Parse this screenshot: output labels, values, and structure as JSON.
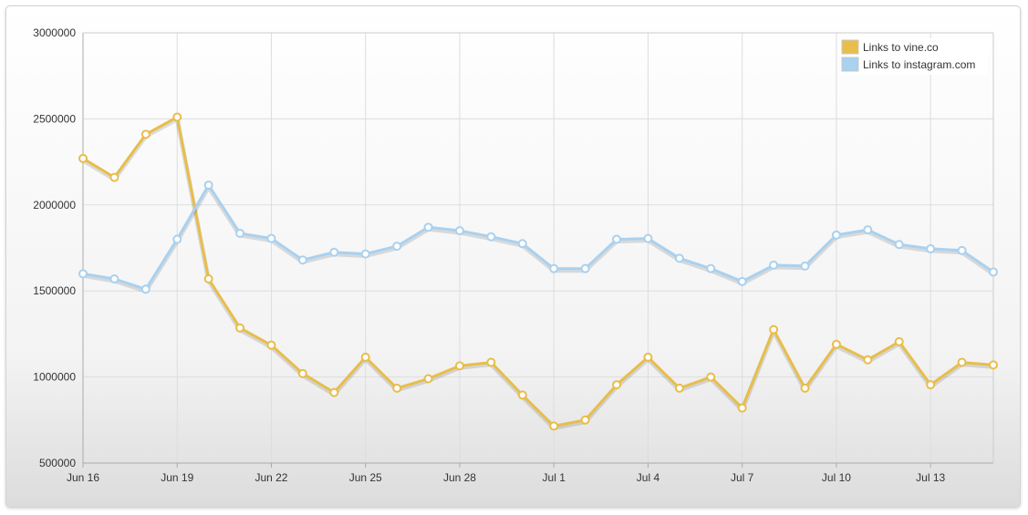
{
  "chart_data": {
    "type": "line",
    "x": [
      "Jun 16",
      "Jun 17",
      "Jun 18",
      "Jun 19",
      "Jun 20",
      "Jun 21",
      "Jun 22",
      "Jun 23",
      "Jun 24",
      "Jun 25",
      "Jun 26",
      "Jun 27",
      "Jun 28",
      "Jun 29",
      "Jun 30",
      "Jul 1",
      "Jul 2",
      "Jul 3",
      "Jul 4",
      "Jul 5",
      "Jul 6",
      "Jul 7",
      "Jul 8",
      "Jul 9",
      "Jul 10",
      "Jul 11",
      "Jul 12",
      "Jul 13",
      "Jul 14",
      "Jul 15"
    ],
    "x_tick_labels": [
      "Jun 16",
      "Jun 19",
      "Jun 22",
      "Jun 25",
      "Jun 28",
      "Jul 1",
      "Jul 4",
      "Jul 7",
      "Jul 10",
      "Jul 13"
    ],
    "y_tick_labels": [
      "500000",
      "1000000",
      "1500000",
      "2000000",
      "2500000",
      "3000000"
    ],
    "ylim": [
      500000,
      3000000
    ],
    "grid": true,
    "legend_position": "top-right",
    "series": [
      {
        "name": "Links to vine.co",
        "color": "#e8bd4a",
        "values": [
          2270000,
          2160000,
          2410000,
          2510000,
          1570000,
          1285000,
          1185000,
          1020000,
          910000,
          1115000,
          935000,
          990000,
          1065000,
          1085000,
          895000,
          715000,
          750000,
          955000,
          1115000,
          935000,
          1000000,
          820000,
          1275000,
          935000,
          1190000,
          1100000,
          1205000,
          955000,
          1085000,
          1070000
        ]
      },
      {
        "name": "Links to instagram.com",
        "color": "#a9d1f0",
        "values": [
          1600000,
          1570000,
          1510000,
          1800000,
          2115000,
          1835000,
          1805000,
          1680000,
          1725000,
          1715000,
          1760000,
          1870000,
          1850000,
          1815000,
          1775000,
          1630000,
          1630000,
          1800000,
          1805000,
          1690000,
          1630000,
          1555000,
          1650000,
          1645000,
          1825000,
          1855000,
          1770000,
          1745000,
          1735000,
          1610000
        ]
      }
    ]
  }
}
